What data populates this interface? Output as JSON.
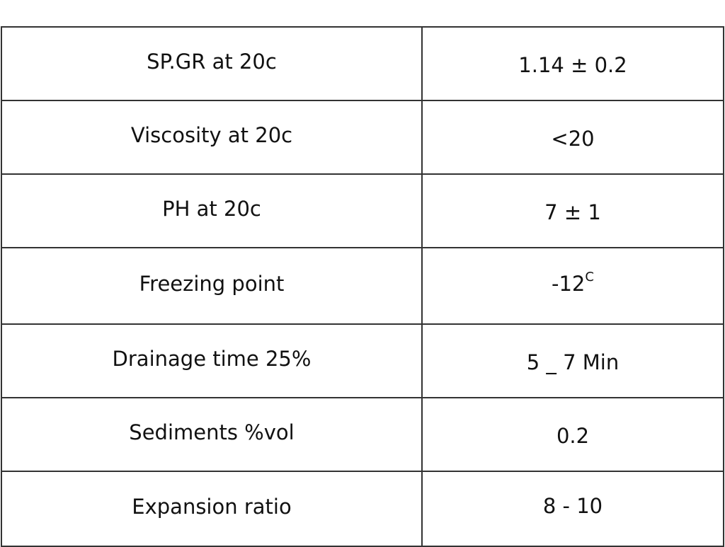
{
  "table": {
    "rows": [
      {
        "property": "SP.GR at 20c",
        "value": "1.14 ± 0.2",
        "sup": ""
      },
      {
        "property": "Viscosity at 20c",
        "value": "<20",
        "sup": ""
      },
      {
        "property": "PH at 20c",
        "value": "7 ± 1",
        "sup": ""
      },
      {
        "property": "Freezing point",
        "value": "-12",
        "sup": "C"
      },
      {
        "property": "Drainage time 25%",
        "value": "5 _ 7 Min",
        "sup": ""
      },
      {
        "property": "Sediments %vol",
        "value": "0.2",
        "sup": ""
      },
      {
        "property": "Expansion ratio",
        "value": "8 - 10",
        "sup": ""
      }
    ]
  }
}
